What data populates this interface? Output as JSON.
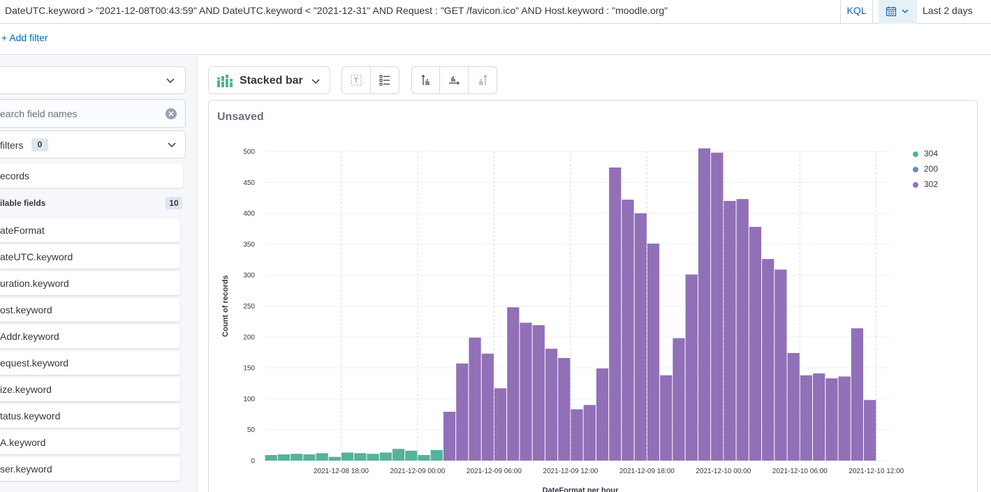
{
  "query": {
    "text": "DateUTC.keyword > \"2021-12-08T00:43:59\" AND DateUTC.keyword < \"2021-12-31\" AND Request : \"GET /favicon.ico\" AND Host.keyword : \"moodle.org\"",
    "language": "KQL",
    "date_range": "Last 2 days"
  },
  "filters": {
    "add_filter_label": "+ Add filter"
  },
  "sidebar": {
    "index_pattern": "",
    "search_placeholder": "earch field names",
    "filters_label": "filters",
    "filters_count": "0",
    "records_label": "ecords",
    "available_fields_label": "ilable fields",
    "available_fields_count": "10",
    "fields": [
      "ateFormat",
      "ateUTC.keyword",
      "uration.keyword",
      "ost.keyword",
      "Addr.keyword",
      "equest.keyword",
      "ize.keyword",
      "tatus.keyword",
      "A.keyword",
      "ser.keyword"
    ]
  },
  "toolbar": {
    "chart_type_label": "Stacked bar"
  },
  "chart": {
    "title": "Unsaved"
  },
  "colors": {
    "series_304": "#54b399",
    "series_200": "#6092c0",
    "series_302": "#9170b8",
    "accent": "#006bb8"
  },
  "chart_data": {
    "type": "bar",
    "stacked": true,
    "xlabel": "DateFormat per hour",
    "ylabel": "Count of records",
    "ylim": [
      0,
      500
    ],
    "yticks": [
      0,
      50,
      100,
      150,
      200,
      250,
      300,
      350,
      400,
      450,
      500
    ],
    "x_tick_labels": [
      "2021-12-08 18:00",
      "2021-12-09 00:00",
      "2021-12-09 06:00",
      "2021-12-09 12:00",
      "2021-12-09 18:00",
      "2021-12-10 00:00",
      "2021-12-10 06:00",
      "2021-12-10 12:00"
    ],
    "x_start": "2021-12-08 12:00",
    "x_end": "2021-12-10 13:00",
    "legend_position": "top-right",
    "series": [
      {
        "name": "304",
        "color": "#54b399",
        "points": [
          [
            "2021-12-08 12:00",
            9
          ],
          [
            "2021-12-08 13:00",
            10
          ],
          [
            "2021-12-08 14:00",
            11
          ],
          [
            "2021-12-08 15:00",
            10
          ],
          [
            "2021-12-08 16:00",
            12
          ],
          [
            "2021-12-08 17:00",
            6
          ],
          [
            "2021-12-08 18:00",
            13
          ],
          [
            "2021-12-08 19:00",
            12
          ],
          [
            "2021-12-08 20:00",
            11
          ],
          [
            "2021-12-08 21:00",
            13
          ],
          [
            "2021-12-08 22:00",
            19
          ],
          [
            "2021-12-08 23:00",
            16
          ],
          [
            "2021-12-09 00:00",
            9
          ],
          [
            "2021-12-09 01:00",
            17
          ]
        ]
      },
      {
        "name": "200",
        "color": "#6092c0",
        "points": []
      },
      {
        "name": "302",
        "color": "#9170b8",
        "points": [
          [
            "2021-12-09 02:00",
            79
          ],
          [
            "2021-12-09 03:00",
            157
          ],
          [
            "2021-12-09 04:00",
            199
          ],
          [
            "2021-12-09 05:00",
            173
          ],
          [
            "2021-12-09 06:00",
            117
          ],
          [
            "2021-12-09 07:00",
            248
          ],
          [
            "2021-12-09 08:00",
            223
          ],
          [
            "2021-12-09 09:00",
            219
          ],
          [
            "2021-12-09 10:00",
            181
          ],
          [
            "2021-12-09 11:00",
            166
          ],
          [
            "2021-12-09 12:00",
            83
          ],
          [
            "2021-12-09 13:00",
            90
          ],
          [
            "2021-12-09 14:00",
            149
          ],
          [
            "2021-12-09 15:00",
            474
          ],
          [
            "2021-12-09 16:00",
            422
          ],
          [
            "2021-12-09 17:00",
            400
          ],
          [
            "2021-12-09 18:00",
            351
          ],
          [
            "2021-12-09 19:00",
            138
          ],
          [
            "2021-12-09 20:00",
            198
          ],
          [
            "2021-12-09 21:00",
            301
          ],
          [
            "2021-12-09 22:00",
            505
          ],
          [
            "2021-12-09 23:00",
            498
          ],
          [
            "2021-12-10 00:00",
            420
          ],
          [
            "2021-12-10 01:00",
            423
          ],
          [
            "2021-12-10 02:00",
            378
          ],
          [
            "2021-12-10 03:00",
            326
          ],
          [
            "2021-12-10 04:00",
            309
          ],
          [
            "2021-12-10 05:00",
            174
          ],
          [
            "2021-12-10 06:00",
            138
          ],
          [
            "2021-12-10 07:00",
            141
          ],
          [
            "2021-12-10 08:00",
            133
          ],
          [
            "2021-12-10 09:00",
            136
          ],
          [
            "2021-12-10 10:00",
            214
          ],
          [
            "2021-12-10 11:00",
            98
          ]
        ]
      }
    ]
  }
}
